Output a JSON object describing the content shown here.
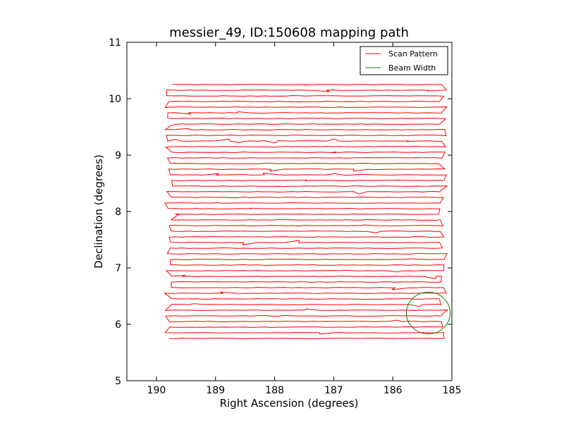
{
  "chart_data": {
    "type": "line",
    "title": "messier_49, ID:150608 mapping path",
    "xlabel": "Right Ascension (degrees)",
    "ylabel": "Declination (degrees)",
    "xlim": [
      190.5,
      185
    ],
    "ylim": [
      5,
      11
    ],
    "x_inverted": true,
    "xticks": [
      190,
      189,
      188,
      187,
      186,
      185
    ],
    "yticks": [
      5,
      6,
      7,
      8,
      9,
      10,
      11
    ],
    "grid": false,
    "legend": {
      "position": "top-right",
      "entries": [
        {
          "label": "Scan Pattern",
          "color": "#ff0000"
        },
        {
          "label": "Beam Width",
          "color": "#008000"
        }
      ]
    },
    "series": [
      {
        "name": "Scan Pattern",
        "color": "#ff0000",
        "pattern": "raster",
        "ra_start": 189.8,
        "ra_end": 185.15,
        "dec_start": 5.75,
        "dec_end": 10.25,
        "row_spacing": 0.1
      },
      {
        "name": "Beam Width",
        "color": "#008000",
        "shape": "circle",
        "center": [
          185.4,
          6.2
        ],
        "radius": 0.37
      }
    ]
  }
}
